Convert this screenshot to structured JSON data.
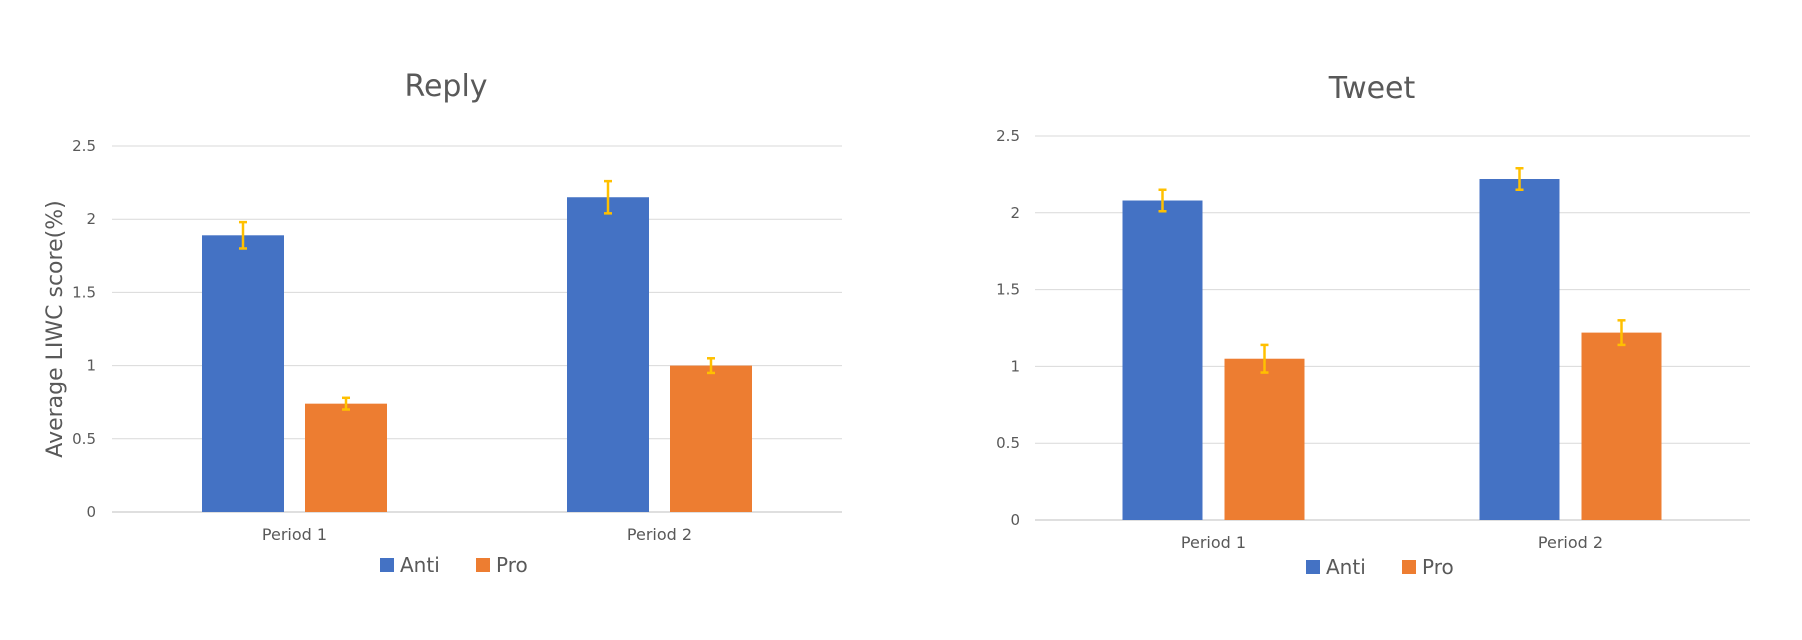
{
  "chart_data": [
    {
      "type": "bar",
      "title": "Reply",
      "ylabel": "Average LIWC score(%)",
      "xlabel": "",
      "categories": [
        "Period 1",
        "Period 2"
      ],
      "ylim": [
        0,
        2.5
      ],
      "yticks": [
        "0",
        "0.5",
        "1",
        "1.5",
        "2",
        "2.5"
      ],
      "grid": true,
      "legend": "bottom",
      "series": [
        {
          "name": "Anti",
          "color": "#4472C4",
          "values": [
            1.89,
            2.15
          ],
          "errors": [
            0.09,
            0.11
          ]
        },
        {
          "name": "Pro",
          "color": "#ED7D31",
          "values": [
            0.74,
            1.0
          ],
          "errors": [
            0.04,
            0.05
          ]
        }
      ],
      "error_color": "#FFC000"
    },
    {
      "type": "bar",
      "title": "Tweet",
      "ylabel": "",
      "xlabel": "",
      "categories": [
        "Period 1",
        "Period 2"
      ],
      "ylim": [
        0,
        2.5
      ],
      "yticks": [
        "0",
        "0.5",
        "1",
        "1.5",
        "2",
        "2.5"
      ],
      "grid": true,
      "legend": "bottom",
      "series": [
        {
          "name": "Anti",
          "color": "#4472C4",
          "values": [
            2.08,
            2.22
          ],
          "errors": [
            0.07,
            0.07
          ]
        },
        {
          "name": "Pro",
          "color": "#ED7D31",
          "values": [
            1.05,
            1.22
          ],
          "errors": [
            0.09,
            0.08
          ]
        }
      ],
      "error_color": "#FFC000"
    }
  ]
}
